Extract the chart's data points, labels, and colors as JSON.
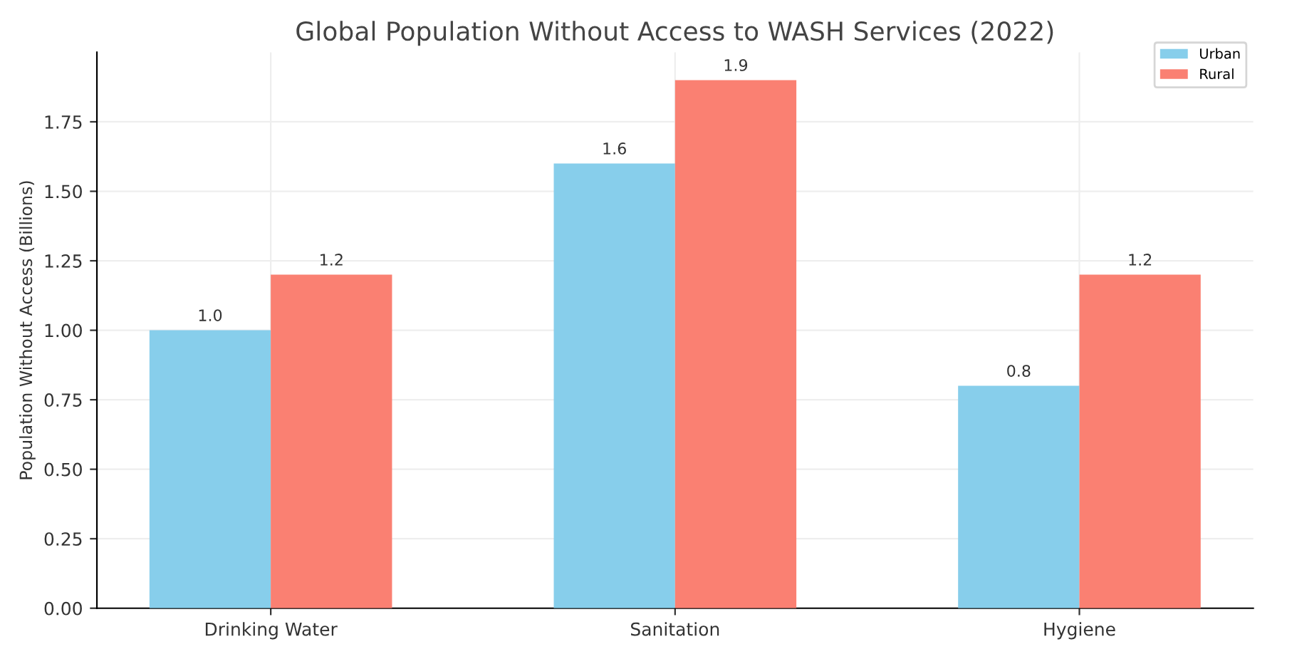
{
  "chart_data": {
    "type": "bar",
    "title": "Global Population Without Access to WASH Services (2022)",
    "ylabel": "Population Without Access (Billions)",
    "categories": [
      "Drinking Water",
      "Sanitation",
      "Hygiene"
    ],
    "series": [
      {
        "name": "Urban",
        "color": "#87ceeb",
        "values": [
          1.0,
          1.6,
          0.8
        ],
        "value_labels": [
          "1.0",
          "1.6",
          "0.8"
        ]
      },
      {
        "name": "Rural",
        "color": "#fa8072",
        "values": [
          1.2,
          1.9,
          1.2
        ],
        "value_labels": [
          "1.2",
          "1.9",
          "1.2"
        ]
      }
    ],
    "ylim": [
      0,
      2.0
    ],
    "yticks": [
      {
        "value": 0,
        "label": "0.00"
      },
      {
        "value": 0.25,
        "label": "0.25"
      },
      {
        "value": 0.5,
        "label": "0.50"
      },
      {
        "value": 0.75,
        "label": "0.75"
      },
      {
        "value": 1.0,
        "label": "1.00"
      },
      {
        "value": 1.25,
        "label": "1.25"
      },
      {
        "value": 1.5,
        "label": "1.50"
      },
      {
        "value": 1.75,
        "label": "1.75"
      }
    ],
    "grid": true,
    "legend": "top right"
  }
}
